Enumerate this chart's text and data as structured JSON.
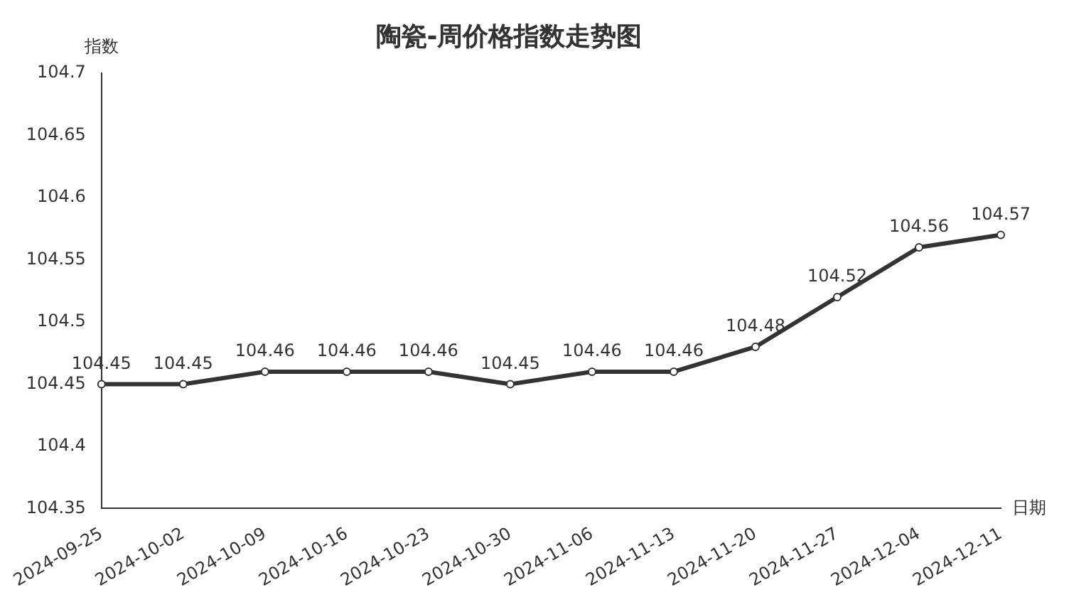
{
  "chart_data": {
    "type": "line",
    "title": "陶瓷-周价格指数走势图",
    "xlabel": "日期",
    "ylabel": "指数",
    "categories": [
      "2024-09-25",
      "2024-10-02",
      "2024-10-09",
      "2024-10-16",
      "2024-10-23",
      "2024-10-30",
      "2024-11-06",
      "2024-11-13",
      "2024-11-20",
      "2024-11-27",
      "2024-12-04",
      "2024-12-11"
    ],
    "series": [
      {
        "color": "#333333",
        "values": [
          104.45,
          104.45,
          104.46,
          104.46,
          104.46,
          104.45,
          104.46,
          104.46,
          104.48,
          104.52,
          104.56,
          104.57
        ]
      }
    ],
    "ylim": [
      104.35,
      104.7
    ],
    "yticks": [
      104.35,
      104.4,
      104.45,
      104.5,
      104.55,
      104.6,
      104.65,
      104.7
    ],
    "grid": false,
    "legend": false,
    "marker": "circle",
    "line_style": "solid",
    "data_labels": true
  }
}
